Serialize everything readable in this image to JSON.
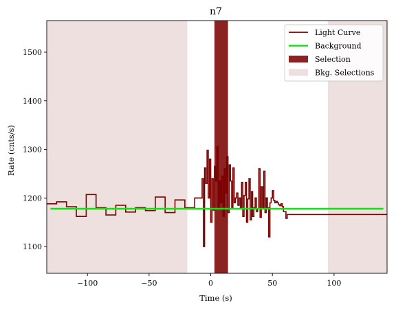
{
  "chart_data": {
    "type": "line",
    "title": "n7",
    "xlabel": "Time (s)",
    "ylabel": "Rate (cnts/s)",
    "xlim": [
      -133,
      143
    ],
    "ylim": [
      1045,
      1565
    ],
    "xticks": [
      -100,
      -50,
      0,
      50,
      100
    ],
    "yticks": [
      1100,
      1200,
      1300,
      1400,
      1500
    ],
    "grid": false,
    "legend_position": "top-right",
    "legend": [
      {
        "key": "light_curve",
        "label": "Light Curve",
        "kind": "line",
        "color": "#7b0000"
      },
      {
        "key": "background",
        "label": "Background",
        "kind": "line",
        "color": "#00ee00"
      },
      {
        "key": "selection",
        "label": "Selection",
        "kind": "patch",
        "color": "#8b2323"
      },
      {
        "key": "bkg_selections",
        "label": "Bkg. Selections",
        "kind": "patch",
        "color": "#efe0e0"
      }
    ],
    "background_line": {
      "x": [
        -130,
        140
      ],
      "y": [
        1178,
        1178
      ],
      "color": "#00ee00"
    },
    "selection_region": {
      "x_start": 3,
      "x_end": 14,
      "color": "#8b2323"
    },
    "bkg_selection_regions": [
      {
        "x_start": -133,
        "x_end": -19
      },
      {
        "x_start": 95,
        "x_end": 143
      }
    ],
    "light_curve": {
      "color": "#7b0000",
      "edges": [
        -133,
        -125,
        -117,
        -109,
        -101,
        -93,
        -85,
        -77,
        -69,
        -61,
        -53,
        -45,
        -37,
        -29,
        -21,
        -13,
        -7,
        -6,
        -5,
        -4,
        -3,
        -2,
        -1,
        0,
        1,
        2,
        3,
        4,
        5,
        6,
        7,
        8,
        9,
        10,
        11,
        12,
        13,
        14,
        15,
        16,
        17,
        18,
        19,
        20,
        21,
        22,
        23,
        24,
        25,
        26,
        27,
        28,
        29,
        30,
        31,
        32,
        33,
        34,
        35,
        36,
        37,
        38,
        39,
        40,
        41,
        42,
        43,
        44,
        45,
        46,
        47,
        48,
        49,
        50,
        51,
        52,
        53,
        54,
        55,
        56,
        57,
        58,
        59,
        60,
        61,
        62,
        63,
        64,
        65,
        66,
        67,
        68,
        69,
        70,
        78,
        86,
        94,
        102,
        110,
        118,
        126,
        134,
        143
      ],
      "values": [
        1188,
        1192,
        1182,
        1162,
        1207,
        1180,
        1165,
        1185,
        1171,
        1180,
        1174,
        1202,
        1170,
        1196,
        1180,
        1200,
        1240,
        1100,
        1262,
        1230,
        1298,
        1200,
        1280,
        1150,
        1240,
        1175,
        1265,
        1235,
        1306,
        1180,
        1235,
        1190,
        1245,
        1162,
        1260,
        1210,
        1285,
        1170,
        1268,
        1235,
        1180,
        1262,
        1190,
        1200,
        1210,
        1185,
        1200,
        1178,
        1232,
        1162,
        1205,
        1232,
        1150,
        1198,
        1240,
        1155,
        1213,
        1162,
        1180,
        1200,
        1172,
        1178,
        1260,
        1160,
        1223,
        1180,
        1255,
        1170,
        1200,
        1180,
        1120,
        1190,
        1200,
        1215,
        1195,
        1190,
        1193,
        1190,
        1186,
        1184,
        1188,
        1182,
        1172,
        1172,
        1158,
        1166,
        1166,
        1166,
        1166,
        1166,
        1166,
        1166,
        1166,
        1166,
        1166,
        1166,
        1166,
        1166,
        1166,
        1166,
        1166,
        1166
      ],
      "note_values_units": "cnts/s"
    }
  }
}
